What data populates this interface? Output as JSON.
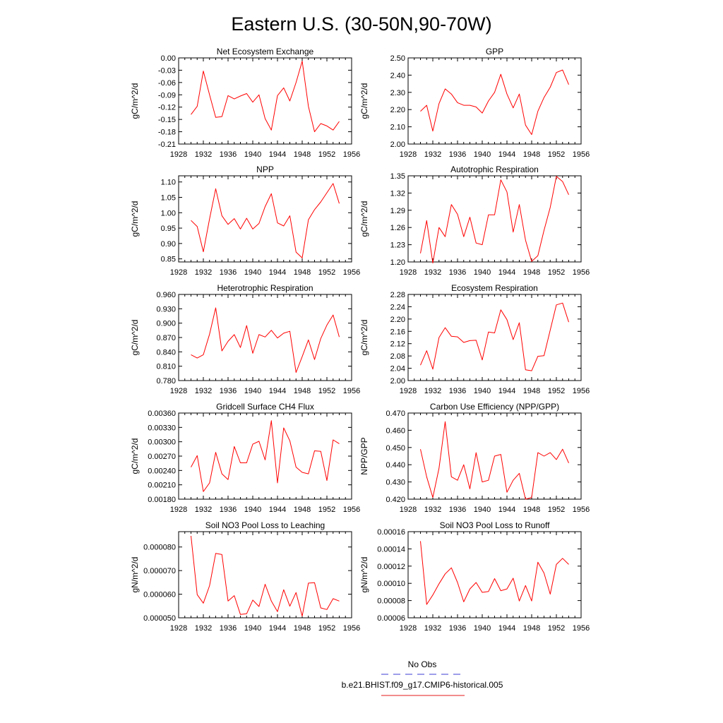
{
  "figure": {
    "title": "Eastern U.S. (30-50N,90-70W)"
  },
  "legend": {
    "entries": [
      {
        "label": "No Obs",
        "color": "#3b3bd6",
        "style": "dashed"
      },
      {
        "label": "b.e21.BHIST.f09_g17.CMIP6-historical.005",
        "color": "#e51a1a",
        "style": "solid"
      }
    ]
  },
  "colors": {
    "series": "#ff0000"
  },
  "chart_data": [
    {
      "type": "line",
      "title": "Net Ecosystem Exchange",
      "ylabel": "gC/m^2/d",
      "xlim": [
        1928,
        1956
      ],
      "x_ticks": [
        1928,
        1932,
        1936,
        1940,
        1944,
        1948,
        1952,
        1956
      ],
      "ylim": [
        -0.21,
        0.0
      ],
      "y_ticks": [
        "0.00",
        "-0.03",
        "-0.06",
        "-0.09",
        "-0.12",
        "-0.15",
        "-0.18",
        "-0.21"
      ],
      "series": [
        {
          "color": "#ff0000",
          "x": [
            1930,
            1931,
            1932,
            1933,
            1934,
            1935,
            1936,
            1937,
            1938,
            1939,
            1940,
            1941,
            1942,
            1943,
            1944,
            1945,
            1946,
            1947,
            1948,
            1949,
            1950,
            1951,
            1952,
            1953,
            1954
          ],
          "y": [
            -0.138,
            -0.118,
            -0.032,
            -0.09,
            -0.145,
            -0.143,
            -0.092,
            -0.1,
            -0.093,
            -0.087,
            -0.108,
            -0.09,
            -0.148,
            -0.176,
            -0.092,
            -0.073,
            -0.105,
            -0.06,
            -0.008,
            -0.118,
            -0.18,
            -0.16,
            -0.166,
            -0.176,
            -0.155
          ]
        }
      ]
    },
    {
      "type": "line",
      "title": "GPP",
      "ylabel": "gC/m^2/d",
      "xlim": [
        1928,
        1956
      ],
      "x_ticks": [
        1928,
        1932,
        1936,
        1940,
        1944,
        1948,
        1952,
        1956
      ],
      "ylim": [
        2.0,
        2.5
      ],
      "y_ticks": [
        "2.50",
        "2.40",
        "2.30",
        "2.20",
        "2.10",
        "2.00"
      ],
      "series": [
        {
          "color": "#ff0000",
          "x": [
            1930,
            1931,
            1932,
            1933,
            1934,
            1935,
            1936,
            1937,
            1938,
            1939,
            1940,
            1941,
            1942,
            1943,
            1944,
            1945,
            1946,
            1947,
            1948,
            1949,
            1950,
            1951,
            1952,
            1953,
            1954
          ],
          "y": [
            2.19,
            2.225,
            2.075,
            2.235,
            2.32,
            2.29,
            2.24,
            2.225,
            2.225,
            2.215,
            2.18,
            2.25,
            2.3,
            2.405,
            2.29,
            2.21,
            2.29,
            2.11,
            2.055,
            2.19,
            2.27,
            2.33,
            2.415,
            2.43,
            2.345
          ]
        }
      ]
    },
    {
      "type": "line",
      "title": "NPP",
      "ylabel": "gC/m^2/d",
      "xlim": [
        1928,
        1956
      ],
      "x_ticks": [
        1928,
        1932,
        1936,
        1940,
        1944,
        1948,
        1952,
        1956
      ],
      "ylim": [
        0.84,
        1.12
      ],
      "y_ticks": [
        "1.10",
        "1.05",
        "1.00",
        "0.95",
        "0.90",
        "0.85"
      ],
      "series": [
        {
          "color": "#ff0000",
          "x": [
            1930,
            1931,
            1932,
            1933,
            1934,
            1935,
            1936,
            1937,
            1938,
            1939,
            1940,
            1941,
            1942,
            1943,
            1944,
            1945,
            1946,
            1947,
            1948,
            1949,
            1950,
            1951,
            1952,
            1953,
            1954
          ],
          "y": [
            0.975,
            0.955,
            0.873,
            0.98,
            1.078,
            0.99,
            0.962,
            0.981,
            0.947,
            0.982,
            0.947,
            0.965,
            1.02,
            1.062,
            0.967,
            0.957,
            0.99,
            0.872,
            0.853,
            0.977,
            1.01,
            1.035,
            1.065,
            1.095,
            1.03
          ]
        }
      ]
    },
    {
      "type": "line",
      "title": "Autotrophic Respiration",
      "ylabel": "gC/m^2/d",
      "xlim": [
        1928,
        1956
      ],
      "x_ticks": [
        1928,
        1932,
        1936,
        1940,
        1944,
        1948,
        1952,
        1956
      ],
      "ylim": [
        1.2,
        1.35
      ],
      "y_ticks": [
        "1.35",
        "1.32",
        "1.29",
        "1.26",
        "1.23",
        "1.20"
      ],
      "series": [
        {
          "color": "#ff0000",
          "x": [
            1930,
            1931,
            1932,
            1933,
            1934,
            1935,
            1936,
            1937,
            1938,
            1939,
            1940,
            1941,
            1942,
            1943,
            1944,
            1945,
            1946,
            1947,
            1948,
            1949,
            1950,
            1951,
            1952,
            1953,
            1954
          ],
          "y": [
            1.215,
            1.272,
            1.198,
            1.26,
            1.244,
            1.3,
            1.283,
            1.244,
            1.278,
            1.233,
            1.23,
            1.282,
            1.282,
            1.343,
            1.322,
            1.252,
            1.3,
            1.238,
            1.201,
            1.211,
            1.255,
            1.295,
            1.349,
            1.34,
            1.317
          ]
        }
      ]
    },
    {
      "type": "line",
      "title": "Heterotrophic Respiration",
      "ylabel": "gC/m^2/d",
      "xlim": [
        1928,
        1956
      ],
      "x_ticks": [
        1928,
        1932,
        1936,
        1940,
        1944,
        1948,
        1952,
        1956
      ],
      "ylim": [
        0.78,
        0.96
      ],
      "y_ticks": [
        "0.960",
        "0.930",
        "0.900",
        "0.870",
        "0.840",
        "0.810",
        "0.780"
      ],
      "series": [
        {
          "color": "#ff0000",
          "x": [
            1930,
            1931,
            1932,
            1933,
            1934,
            1935,
            1936,
            1937,
            1938,
            1939,
            1940,
            1941,
            1942,
            1943,
            1944,
            1945,
            1946,
            1947,
            1948,
            1949,
            1950,
            1951,
            1952,
            1953,
            1954
          ],
          "y": [
            0.834,
            0.827,
            0.834,
            0.877,
            0.932,
            0.842,
            0.862,
            0.876,
            0.849,
            0.895,
            0.837,
            0.876,
            0.871,
            0.885,
            0.869,
            0.879,
            0.883,
            0.797,
            0.83,
            0.865,
            0.824,
            0.868,
            0.896,
            0.917,
            0.871
          ]
        }
      ]
    },
    {
      "type": "line",
      "title": "Ecosystem Respiration",
      "ylabel": "gC/m^2/d",
      "xlim": [
        1928,
        1956
      ],
      "x_ticks": [
        1928,
        1932,
        1936,
        1940,
        1944,
        1948,
        1952,
        1956
      ],
      "ylim": [
        2.0,
        2.28
      ],
      "y_ticks": [
        "2.28",
        "2.24",
        "2.20",
        "2.16",
        "2.12",
        "2.08",
        "2.04",
        "2.00"
      ],
      "series": [
        {
          "color": "#ff0000",
          "x": [
            1930,
            1931,
            1932,
            1933,
            1934,
            1935,
            1936,
            1937,
            1938,
            1939,
            1940,
            1941,
            1942,
            1943,
            1944,
            1945,
            1946,
            1947,
            1948,
            1949,
            1950,
            1951,
            1952,
            1953,
            1954
          ],
          "y": [
            2.05,
            2.097,
            2.037,
            2.14,
            2.172,
            2.144,
            2.142,
            2.124,
            2.13,
            2.131,
            2.067,
            2.158,
            2.155,
            2.23,
            2.198,
            2.133,
            2.188,
            2.035,
            2.032,
            2.079,
            2.081,
            2.164,
            2.246,
            2.252,
            2.19
          ]
        }
      ]
    },
    {
      "type": "line",
      "title": "Gridcell Surface CH4 Flux",
      "ylabel": "gC/m^2/d",
      "xlim": [
        1928,
        1956
      ],
      "x_ticks": [
        1928,
        1932,
        1936,
        1940,
        1944,
        1948,
        1952,
        1956
      ],
      "ylim": [
        0.0018,
        0.0036
      ],
      "y_ticks": [
        "0.00360",
        "0.00330",
        "0.00300",
        "0.00270",
        "0.00240",
        "0.00210",
        "0.00180"
      ],
      "series": [
        {
          "color": "#ff0000",
          "x": [
            1930,
            1931,
            1932,
            1933,
            1934,
            1935,
            1936,
            1937,
            1938,
            1939,
            1940,
            1941,
            1942,
            1943,
            1944,
            1945,
            1946,
            1947,
            1948,
            1949,
            1950,
            1951,
            1952,
            1953,
            1954
          ],
          "y": [
            0.00247,
            0.00271,
            0.00196,
            0.00214,
            0.00278,
            0.00233,
            0.00221,
            0.0029,
            0.00256,
            0.00256,
            0.00295,
            0.00301,
            0.00262,
            0.00344,
            0.00214,
            0.00329,
            0.00302,
            0.00247,
            0.00236,
            0.00233,
            0.00281,
            0.0028,
            0.00219,
            0.00304,
            0.00296
          ]
        }
      ]
    },
    {
      "type": "line",
      "title": "Carbon Use Efficiency (NPP/GPP)",
      "ylabel": "NPP/GPP",
      "xlim": [
        1928,
        1956
      ],
      "x_ticks": [
        1928,
        1932,
        1936,
        1940,
        1944,
        1948,
        1952,
        1956
      ],
      "ylim": [
        0.42,
        0.47
      ],
      "y_ticks": [
        "0.470",
        "0.460",
        "0.450",
        "0.440",
        "0.430",
        "0.420"
      ],
      "series": [
        {
          "color": "#ff0000",
          "x": [
            1930,
            1931,
            1932,
            1933,
            1934,
            1935,
            1936,
            1937,
            1938,
            1939,
            1940,
            1941,
            1942,
            1943,
            1944,
            1945,
            1946,
            1947,
            1948,
            1949,
            1950,
            1951,
            1952,
            1953,
            1954
          ],
          "y": [
            0.449,
            0.433,
            0.421,
            0.438,
            0.465,
            0.433,
            0.431,
            0.44,
            0.426,
            0.447,
            0.43,
            0.431,
            0.445,
            0.446,
            0.424,
            0.431,
            0.435,
            0.42,
            0.421,
            0.447,
            0.445,
            0.447,
            0.443,
            0.449,
            0.441
          ]
        }
      ]
    },
    {
      "type": "line",
      "title": "Soil NO3 Pool Loss to Leaching",
      "ylabel": "gN/m^2/d",
      "xlim": [
        1928,
        1956
      ],
      "x_ticks": [
        1928,
        1932,
        1936,
        1940,
        1944,
        1948,
        1952,
        1956
      ],
      "ylim": [
        5e-05,
        8.65e-05
      ],
      "y_ticks": [
        "0.000080",
        "0.000070",
        "0.000060",
        "0.000050"
      ],
      "series": [
        {
          "color": "#ff0000",
          "x": [
            1930,
            1931,
            1932,
            1933,
            1934,
            1935,
            1936,
            1937,
            1938,
            1939,
            1940,
            1941,
            1942,
            1943,
            1944,
            1945,
            1946,
            1947,
            1948,
            1949,
            1950,
            1951,
            1952,
            1953,
            1954
          ],
          "y": [
            8.47e-05,
            5.98e-05,
            5.62e-05,
            6.36e-05,
            7.73e-05,
            7.68e-05,
            5.71e-05,
            5.94e-05,
            5.14e-05,
            5.17e-05,
            5.75e-05,
            5.48e-05,
            6.42e-05,
            5.71e-05,
            5.26e-05,
            6.19e-05,
            5.49e-05,
            6.07e-05,
            5.07e-05,
            6.47e-05,
            6.49e-05,
            5.42e-05,
            5.35e-05,
            5.81e-05,
            5.71e-05
          ]
        }
      ]
    },
    {
      "type": "line",
      "title": "Soil NO3 Pool Loss to Runoff",
      "ylabel": "gN/m^2/d",
      "xlim": [
        1928,
        1956
      ],
      "x_ticks": [
        1928,
        1932,
        1936,
        1940,
        1944,
        1948,
        1952,
        1956
      ],
      "ylim": [
        6e-05,
        0.00016
      ],
      "y_ticks": [
        "0.00016",
        "0.00014",
        "0.00012",
        "0.00010",
        "0.00008",
        "0.00006"
      ],
      "series": [
        {
          "color": "#ff0000",
          "x": [
            1930,
            1931,
            1932,
            1933,
            1934,
            1935,
            1936,
            1937,
            1938,
            1939,
            1940,
            1941,
            1942,
            1943,
            1944,
            1945,
            1946,
            1947,
            1948,
            1949,
            1950,
            1951,
            1952,
            1953,
            1954
          ],
          "y": [
            0.000149,
            7.55e-05,
            8.65e-05,
            9.95e-05,
            0.000111,
            0.000118,
            0.000101,
            7.85e-05,
            9.35e-05,
            0.000101,
            8.95e-05,
            9.05e-05,
            0.0001055,
            9.15e-05,
            9.35e-05,
            0.000106,
            7.95e-05,
            9.75e-05,
            7.95e-05,
            0.0001245,
            0.000112,
            8.75e-05,
            0.000122,
            0.000129,
            0.000122
          ]
        }
      ]
    }
  ]
}
